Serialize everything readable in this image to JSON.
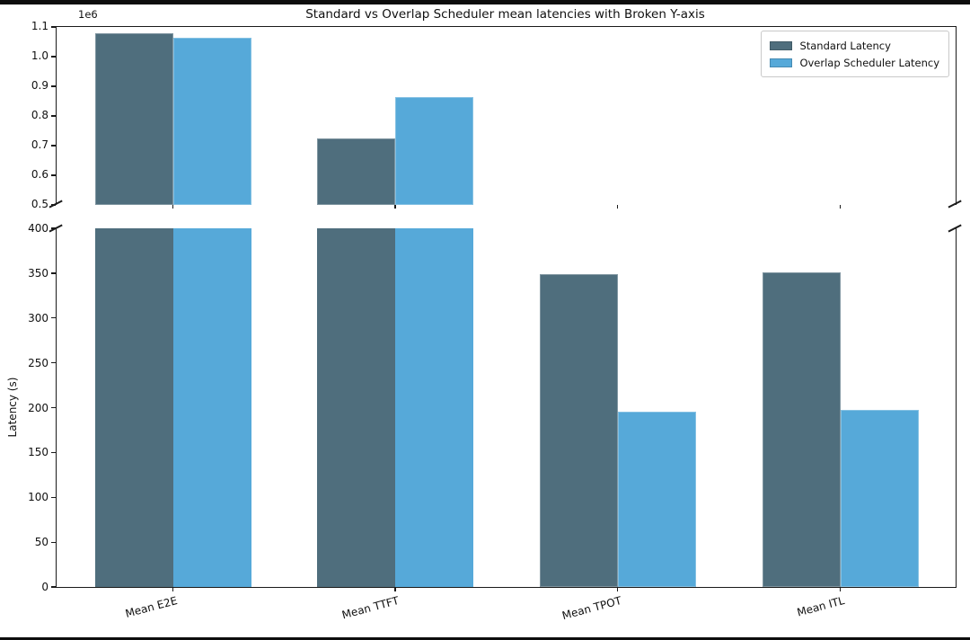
{
  "chart_data": {
    "type": "bar",
    "title": "Standard vs Overlap Scheduler mean latencies with Broken Y-axis",
    "xlabel": "",
    "ylabel": "Latency (s)",
    "offset_text": "1e6",
    "categories": [
      "Mean E2E",
      "Mean TTFT",
      "Mean TPOT",
      "Mean ITL"
    ],
    "series": [
      {
        "name": "Standard Latency",
        "color": "#4f6e7d",
        "values": [
          1080000,
          725000,
          349,
          351
        ]
      },
      {
        "name": "Overlap Scheduler Latency",
        "color": "#56a9d9",
        "values": [
          1065000,
          865000,
          196,
          198
        ]
      }
    ],
    "legend": {
      "position": "upper right",
      "entries": [
        "Standard Latency",
        "Overlap Scheduler Latency"
      ]
    },
    "grid": false,
    "broken_y_axis": true,
    "axes": {
      "top": {
        "ylim": [
          500000,
          1100000
        ],
        "tick_values": [
          1100000,
          1000000,
          900000,
          800000,
          700000,
          600000,
          500000
        ],
        "tick_labels": [
          "1.1",
          "1.0",
          "0.9",
          "0.8",
          "0.7",
          "0.6",
          "0.5"
        ]
      },
      "bottom": {
        "ylim": [
          0,
          400
        ],
        "tick_values": [
          400,
          350,
          300,
          250,
          200,
          150,
          100,
          50,
          0
        ],
        "tick_labels": [
          "400",
          "350",
          "300",
          "250",
          "200",
          "150",
          "100",
          "50",
          "0"
        ]
      }
    }
  },
  "colors": {
    "standard_bar": "#4f6e7d",
    "overlap_bar": "#56a9d9",
    "spine": "#1a1a1a",
    "text": "#111111",
    "legend_border": "#c9c9c9",
    "frame_bar": "#0d0d0d",
    "background": "#ffffff"
  }
}
